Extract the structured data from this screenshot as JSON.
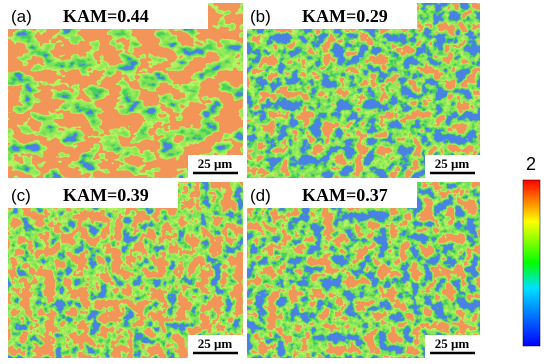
{
  "panels": [
    {
      "label": "(a)",
      "title": "KAM=0.44",
      "scale_bar": "25 μm"
    },
    {
      "label": "(b)",
      "title": "KAM=0.29",
      "scale_bar": "25 μm"
    },
    {
      "label": "(c)",
      "title": "KAM=0.39",
      "scale_bar": "25 μm"
    },
    {
      "label": "(d)",
      "title": "KAM=0.37",
      "scale_bar": "25 μm"
    }
  ],
  "colorbar": {
    "max_label": "2"
  }
}
